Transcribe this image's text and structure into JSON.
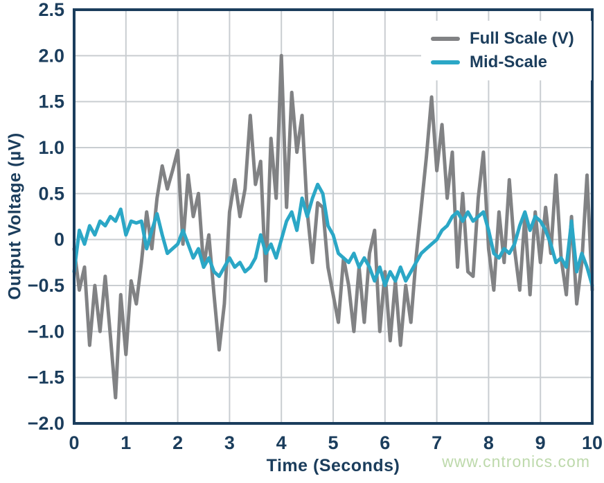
{
  "watermark": {
    "text": "www.cntronics.com",
    "color": "#bdd9ab"
  },
  "chart_data": {
    "type": "line",
    "title": "",
    "xlabel": "Time (Seconds)",
    "ylabel": "Output Voltage (µV)",
    "xlim": [
      0,
      10
    ],
    "ylim": [
      -2.0,
      2.5
    ],
    "grid": true,
    "legend_position": "top-right",
    "x_ticks": [
      0,
      1,
      2,
      3,
      4,
      5,
      6,
      7,
      8,
      9,
      10
    ],
    "x_tick_labels": [
      "0",
      "1",
      "2",
      "3",
      "4",
      "5",
      "6",
      "7",
      "8",
      "9",
      "10"
    ],
    "y_ticks": [
      2.5,
      2.0,
      1.5,
      1.0,
      0.5,
      0,
      -0.5,
      -1.0,
      -1.5,
      -2.0
    ],
    "y_tick_labels": [
      "2.5",
      "2.0",
      "1.5",
      "1.0",
      "0.5",
      "0",
      "−0.5",
      "−1.0",
      "−1.5",
      "−2.0"
    ],
    "x_start": 0,
    "x_step": 0.1,
    "colors": {
      "axis": "#1b3d5c",
      "grid": "#c9cdd1",
      "background": "#ffffff"
    },
    "series": [
      {
        "name": "Full Scale (V)",
        "color": "#818284",
        "values": [
          -0.1,
          -0.55,
          -0.3,
          -1.15,
          -0.5,
          -1.0,
          -0.4,
          -1.05,
          -1.72,
          -0.6,
          -1.25,
          -0.45,
          -0.7,
          -0.25,
          0.3,
          -0.1,
          0.45,
          0.8,
          0.55,
          0.75,
          0.97,
          -0.05,
          0.7,
          0.25,
          0.5,
          -0.3,
          0.05,
          -0.6,
          -1.2,
          -0.7,
          0.3,
          0.65,
          0.25,
          0.55,
          1.35,
          0.6,
          0.85,
          -0.45,
          1.1,
          0.45,
          2.0,
          0.35,
          1.6,
          0.95,
          1.35,
          0.3,
          -0.25,
          0.4,
          0.35,
          -0.3,
          -0.6,
          -0.9,
          -0.2,
          -0.5,
          -1.0,
          -0.3,
          -0.9,
          -0.15,
          0.1,
          -1.0,
          -0.35,
          -1.1,
          -0.45,
          -1.15,
          -0.5,
          -0.9,
          -0.2,
          0.35,
          0.9,
          1.55,
          0.75,
          1.25,
          0.45,
          0.95,
          -0.3,
          0.5,
          -0.35,
          -0.4,
          0.45,
          0.95,
          -0.1,
          -0.55,
          0.3,
          -0.25,
          0.65,
          -0.1,
          -0.55,
          0.25,
          -0.6,
          0.3,
          -0.25,
          0.35,
          -0.15,
          0.7,
          -0.2,
          -0.6,
          0.25,
          -0.7,
          -0.25,
          0.7,
          -0.55
        ]
      },
      {
        "name": "Mid-Scale",
        "color": "#2ba7c6",
        "values": [
          -0.35,
          0.1,
          -0.05,
          0.15,
          0.05,
          0.2,
          0.15,
          0.25,
          0.2,
          0.33,
          0.05,
          0.2,
          0.18,
          0.2,
          -0.1,
          0.1,
          0.28,
          0.05,
          -0.15,
          -0.1,
          -0.05,
          0.1,
          -0.05,
          -0.2,
          -0.1,
          -0.3,
          -0.2,
          -0.35,
          -0.4,
          -0.3,
          -0.2,
          -0.3,
          -0.25,
          -0.35,
          -0.3,
          -0.2,
          0.05,
          -0.15,
          -0.05,
          -0.2,
          0.0,
          0.2,
          0.3,
          0.1,
          0.45,
          0.25,
          0.45,
          0.6,
          0.5,
          0.15,
          0.05,
          -0.15,
          -0.2,
          -0.25,
          -0.15,
          -0.3,
          -0.2,
          -0.3,
          -0.45,
          -0.3,
          -0.5,
          -0.35,
          -0.45,
          -0.3,
          -0.45,
          -0.35,
          -0.25,
          -0.15,
          -0.1,
          -0.05,
          0.0,
          0.1,
          0.15,
          0.25,
          0.3,
          0.2,
          0.3,
          0.2,
          0.25,
          0.3,
          0.1,
          -0.15,
          -0.2,
          -0.1,
          -0.15,
          -0.05,
          0.15,
          0.3,
          0.1,
          0.25,
          0.2,
          0.1,
          -0.05,
          -0.25,
          -0.2,
          -0.3,
          0.2,
          -0.35,
          -0.15,
          -0.3,
          -0.5
        ]
      }
    ]
  }
}
